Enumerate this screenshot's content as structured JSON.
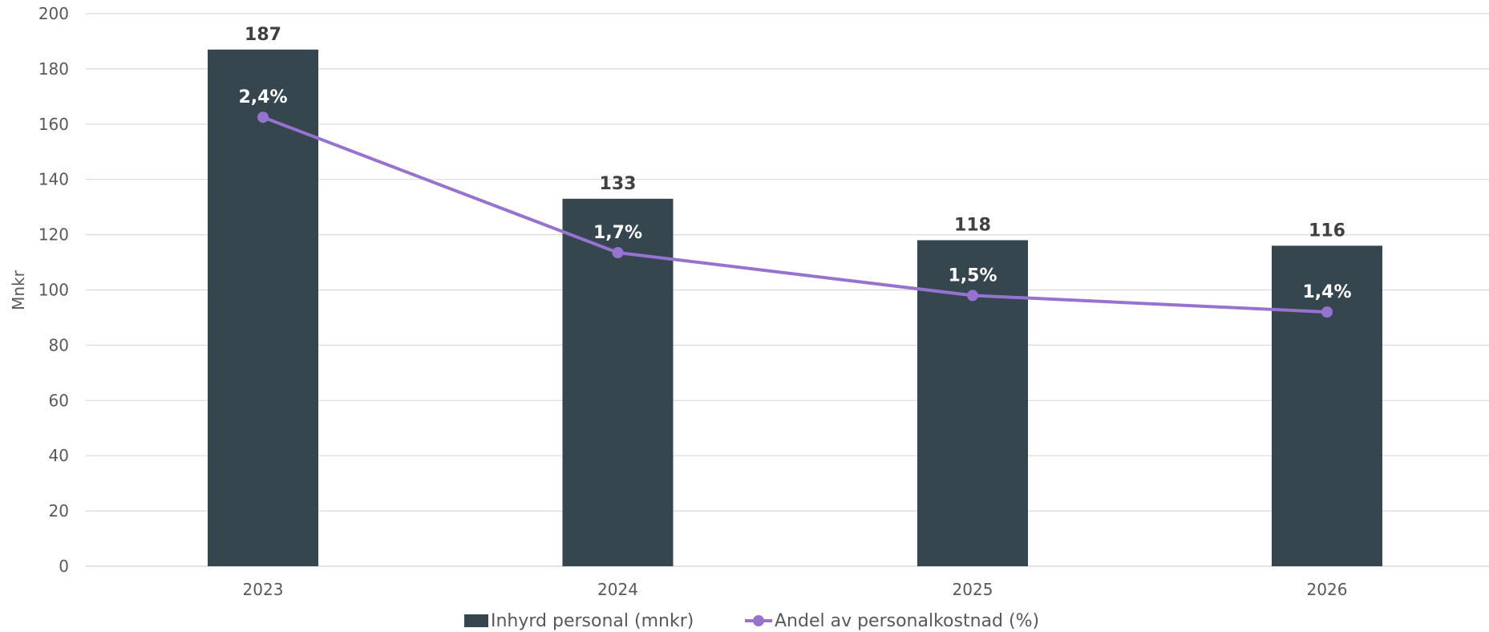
{
  "chart_data": {
    "type": "bar",
    "title": "",
    "xlabel": "",
    "ylabel": "Mnkr",
    "ylim": [
      0,
      200
    ],
    "yticks": [
      0,
      20,
      40,
      60,
      80,
      100,
      120,
      140,
      160,
      180,
      200
    ],
    "grid": true,
    "legend_position": "bottom",
    "categories": [
      "2023",
      "2024",
      "2025",
      "2026"
    ],
    "series": [
      {
        "name": "Inhyrd personal (mnkr)",
        "type": "bar",
        "color": "#36464F",
        "values": [
          187,
          133,
          118,
          116
        ],
        "labels": [
          "187",
          "133",
          "118",
          "116"
        ]
      },
      {
        "name": "Andel av personalkostnad (%)",
        "type": "line",
        "color": "#9673CF",
        "values": [
          2.4,
          1.7,
          1.5,
          1.4
        ],
        "labels": [
          "2,4%",
          "1,7%",
          "1,5%",
          "1,4%"
        ],
        "plotted_on_left_axis": [
          162.5,
          113.5,
          98,
          92
        ]
      }
    ]
  }
}
